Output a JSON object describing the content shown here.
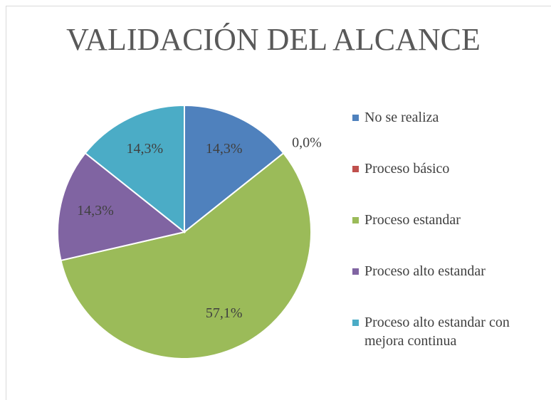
{
  "chart_data": {
    "type": "pie",
    "title": "VALIDACIÓN DEL ALCANCE",
    "categories": [
      "No se realiza",
      "Proceso básico",
      "Proceso estandar",
      "Proceso alto estandar",
      "Proceso alto estandar con mejora continua"
    ],
    "values": [
      14.3,
      0.0,
      57.1,
      14.3,
      14.3
    ],
    "value_labels": [
      "14,3%",
      "0,0%",
      "57,1%",
      "14,3%",
      "14,3%"
    ],
    "colors": [
      "#4f81bd",
      "#c0504d",
      "#9bbb59",
      "#8064a2",
      "#4bacc6"
    ],
    "legend": "right"
  }
}
